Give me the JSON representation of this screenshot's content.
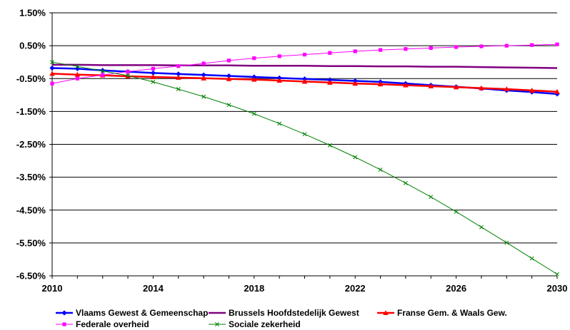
{
  "chart_data": {
    "type": "line",
    "title": "",
    "xlabel": "",
    "ylabel": "",
    "x": [
      2010,
      2011,
      2012,
      2013,
      2014,
      2015,
      2016,
      2017,
      2018,
      2019,
      2020,
      2021,
      2022,
      2023,
      2024,
      2025,
      2026,
      2027,
      2028,
      2029,
      2030
    ],
    "xlim": [
      2010,
      2030
    ],
    "x_ticks": [
      2010,
      2014,
      2018,
      2022,
      2026,
      2030
    ],
    "x_tick_labels": [
      "2010",
      "2014",
      "2018",
      "2022",
      "2026",
      "2030"
    ],
    "ylim": [
      -6.5,
      1.5
    ],
    "y_ticks": [
      1.5,
      0.5,
      -0.5,
      -1.5,
      -2.5,
      -3.5,
      -4.5,
      -5.5,
      -6.5
    ],
    "y_tick_labels": [
      "1.50%",
      "0.50%",
      "-0.50%",
      "-1.50%",
      "-2.50%",
      "-3.50%",
      "-4.50%",
      "-5.50%",
      "-6.50%"
    ],
    "grid": "horizontal",
    "legend_position": "bottom",
    "series": [
      {
        "name": "Vlaams Gewest & Gemeenschap",
        "color": "#0000ff",
        "marker": "diamond",
        "values": [
          -0.18,
          -0.2,
          -0.25,
          -0.29,
          -0.33,
          -0.36,
          -0.39,
          -0.42,
          -0.45,
          -0.48,
          -0.51,
          -0.54,
          -0.57,
          -0.6,
          -0.65,
          -0.7,
          -0.75,
          -0.8,
          -0.86,
          -0.91,
          -0.97
        ]
      },
      {
        "name": "Brussels Hoofdstedelijk Gewest",
        "color": "#800080",
        "marker": "none",
        "values": [
          -0.08,
          -0.08,
          -0.09,
          -0.09,
          -0.09,
          -0.1,
          -0.1,
          -0.1,
          -0.11,
          -0.11,
          -0.11,
          -0.12,
          -0.12,
          -0.13,
          -0.13,
          -0.14,
          -0.14,
          -0.15,
          -0.16,
          -0.17,
          -0.18
        ]
      },
      {
        "name": "Franse Gem. & Waals Gew.",
        "color": "#ff0000",
        "marker": "triangle",
        "values": [
          -0.35,
          -0.38,
          -0.4,
          -0.43,
          -0.45,
          -0.47,
          -0.49,
          -0.51,
          -0.53,
          -0.56,
          -0.59,
          -0.62,
          -0.65,
          -0.67,
          -0.7,
          -0.73,
          -0.76,
          -0.79,
          -0.82,
          -0.86,
          -0.9
        ]
      },
      {
        "name": "Federale overheid",
        "color": "#ff00ff",
        "marker": "square",
        "values": [
          -0.65,
          -0.5,
          -0.39,
          -0.29,
          -0.2,
          -0.12,
          -0.04,
          0.05,
          0.12,
          0.18,
          0.23,
          0.28,
          0.33,
          0.37,
          0.4,
          0.43,
          0.46,
          0.48,
          0.5,
          0.52,
          0.54
        ]
      },
      {
        "name": "Sociale zekerheid",
        "color": "#008000",
        "marker": "x",
        "values": [
          0.0,
          -0.13,
          -0.27,
          -0.41,
          -0.6,
          -0.82,
          -1.05,
          -1.3,
          -1.57,
          -1.87,
          -2.19,
          -2.53,
          -2.89,
          -3.27,
          -3.68,
          -4.1,
          -4.55,
          -5.02,
          -5.49,
          -5.97,
          -6.45
        ]
      }
    ]
  }
}
